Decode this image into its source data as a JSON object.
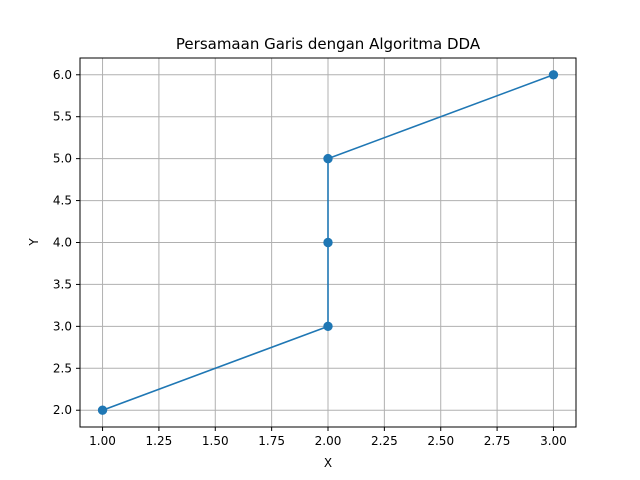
{
  "chart_data": {
    "type": "line",
    "title": "Persamaan Garis dengan Algoritma DDA",
    "xlabel": "X",
    "ylabel": "Y",
    "xlim": [
      0.9,
      3.1
    ],
    "ylim": [
      1.8,
      6.2
    ],
    "x_ticks": [
      "1.00",
      "1.25",
      "1.50",
      "1.75",
      "2.00",
      "2.25",
      "2.50",
      "2.75",
      "3.00"
    ],
    "y_ticks": [
      "2.0",
      "2.5",
      "3.0",
      "3.5",
      "4.0",
      "4.5",
      "5.0",
      "5.5",
      "6.0"
    ],
    "grid": true,
    "series": [
      {
        "x": [
          1,
          2,
          2,
          2,
          3
        ],
        "y": [
          2,
          3,
          4,
          5,
          6
        ],
        "marker": "circle",
        "color": "#1f77b4"
      }
    ],
    "grid_color": "#b0b0b0"
  }
}
